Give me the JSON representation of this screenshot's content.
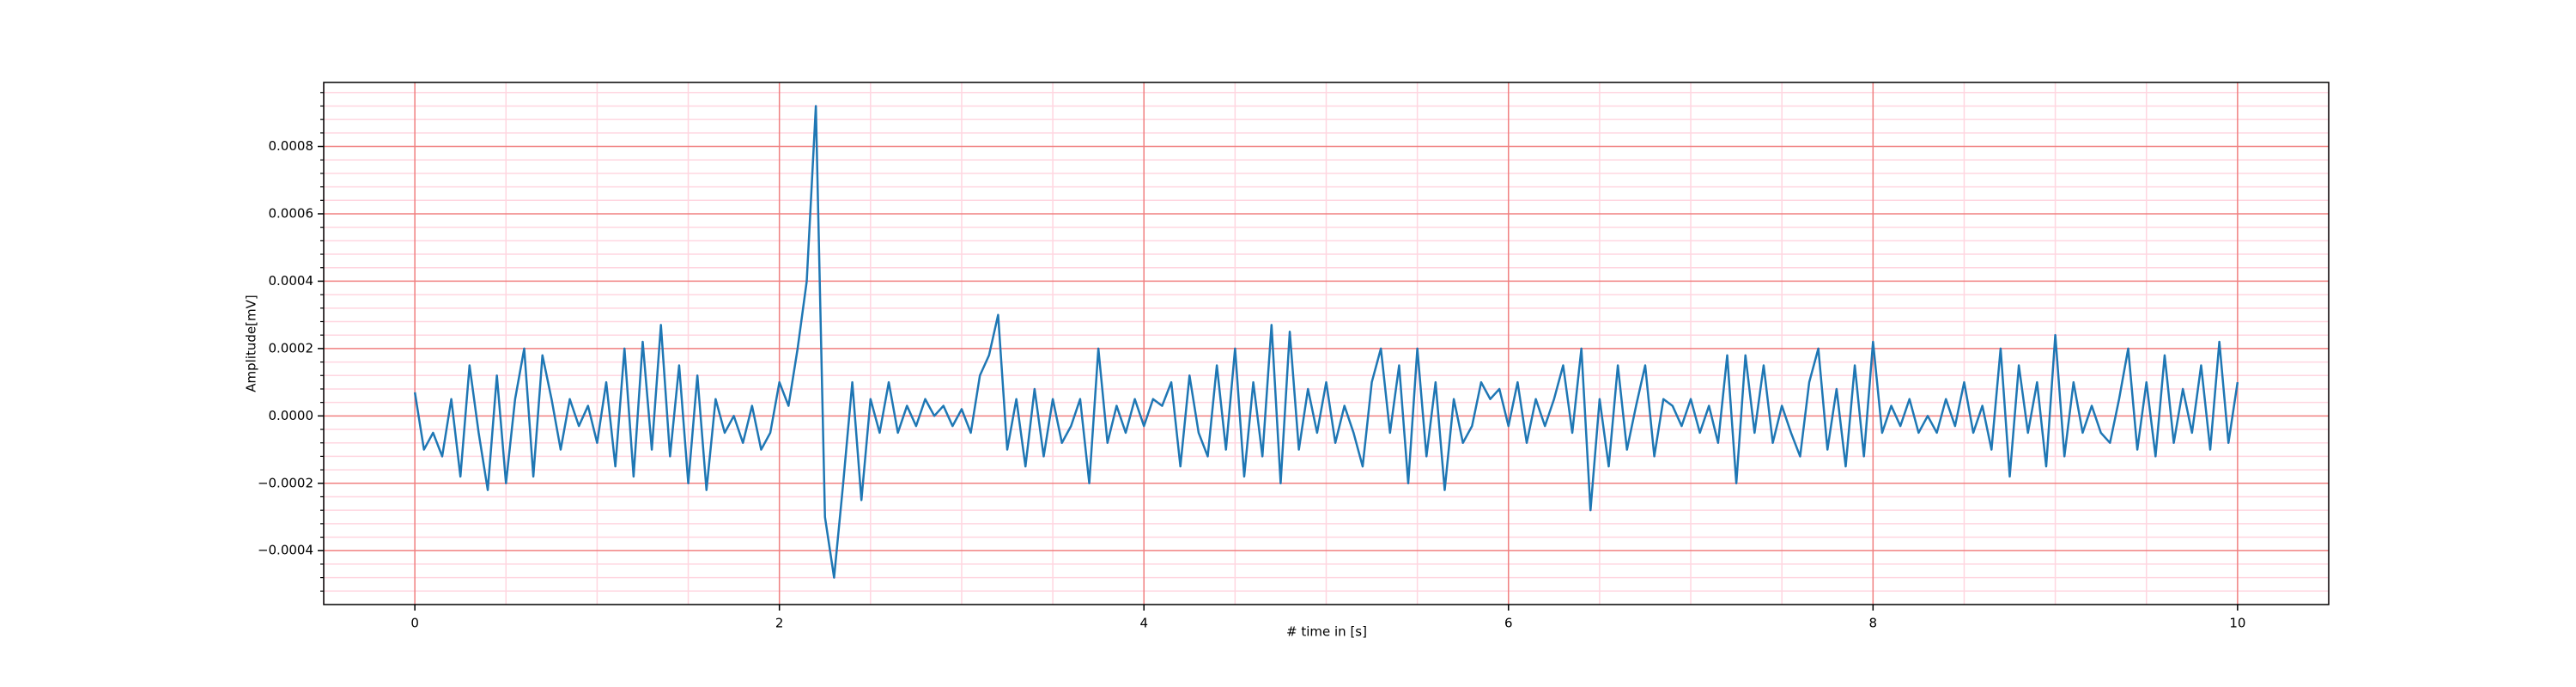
{
  "chart_data": {
    "type": "line",
    "xlabel": "# time in [s]",
    "ylabel": "Amplitude[mV]",
    "color": "#1f77b4",
    "grid": true,
    "major_grid_color": "#f08080",
    "minor_grid_color": "#ffd6e0",
    "xlim": [
      -0.5,
      10.5
    ],
    "ylim": [
      -0.00056,
      0.00099
    ],
    "xticks": [
      0,
      2,
      4,
      6,
      8,
      10
    ],
    "yticks": [
      {
        "value": -0.0004,
        "label": "−0.0004"
      },
      {
        "value": -0.0002,
        "label": "−0.0002"
      },
      {
        "value": 0,
        "label": "0.0000"
      },
      {
        "value": 0.0002,
        "label": "0.0002"
      },
      {
        "value": 0.0004,
        "label": "0.0004"
      },
      {
        "value": 0.0006,
        "label": "0.0006"
      },
      {
        "value": 0.0008,
        "label": "0.0008"
      }
    ],
    "xminorticks": [
      -0.5,
      0.5,
      1,
      1.5,
      2.5,
      3,
      3.5,
      4.5,
      5,
      5.5,
      6.5,
      7,
      7.5,
      8.5,
      9,
      9.5,
      10.5
    ],
    "yminorticks": [
      -0.00052,
      -0.00048,
      -0.00044,
      -0.00036,
      -0.00032,
      -0.00028,
      -0.00024,
      -0.00016,
      -0.00012,
      -8e-05,
      -4e-05,
      4e-05,
      8e-05,
      0.00012,
      0.00016,
      0.00024,
      0.00028,
      0.00032,
      0.00036,
      0.00044,
      0.00048,
      0.00052,
      0.00056,
      0.00064,
      0.00068,
      0.00072,
      0.00076,
      0.00084,
      0.00088,
      0.00092,
      0.00096
    ],
    "x": [
      0,
      0.05,
      0.1,
      0.15,
      0.2,
      0.25,
      0.3,
      0.35,
      0.4,
      0.45,
      0.5,
      0.55,
      0.6,
      0.65,
      0.7,
      0.75,
      0.8,
      0.85,
      0.9,
      0.95,
      1,
      1.05,
      1.1,
      1.15,
      1.2,
      1.25,
      1.3,
      1.35,
      1.4,
      1.45,
      1.5,
      1.55,
      1.6,
      1.65,
      1.7,
      1.75,
      1.8,
      1.85,
      1.9,
      1.95,
      2,
      2.05,
      2.1,
      2.15,
      2.2,
      2.25,
      2.3,
      2.35,
      2.4,
      2.45,
      2.5,
      2.55,
      2.6,
      2.65,
      2.7,
      2.75,
      2.8,
      2.85,
      2.9,
      2.95,
      3,
      3.05,
      3.1,
      3.15,
      3.2,
      3.25,
      3.3,
      3.35,
      3.4,
      3.45,
      3.5,
      3.55,
      3.6,
      3.65,
      3.7,
      3.75,
      3.8,
      3.85,
      3.9,
      3.95,
      4,
      4.05,
      4.1,
      4.15,
      4.2,
      4.25,
      4.3,
      4.35,
      4.4,
      4.45,
      4.5,
      4.55,
      4.6,
      4.65,
      4.7,
      4.75,
      4.8,
      4.85,
      4.9,
      4.95,
      5,
      5.05,
      5.1,
      5.15,
      5.2,
      5.25,
      5.3,
      5.35,
      5.4,
      5.45,
      5.5,
      5.55,
      5.6,
      5.65,
      5.7,
      5.75,
      5.8,
      5.85,
      5.9,
      5.95,
      6,
      6.05,
      6.1,
      6.15,
      6.2,
      6.25,
      6.3,
      6.35,
      6.4,
      6.45,
      6.5,
      6.55,
      6.6,
      6.65,
      6.7,
      6.75,
      6.8,
      6.85,
      6.9,
      6.95,
      7,
      7.05,
      7.1,
      7.15,
      7.2,
      7.25,
      7.3,
      7.35,
      7.4,
      7.45,
      7.5,
      7.55,
      7.6,
      7.65,
      7.7,
      7.75,
      7.8,
      7.85,
      7.9,
      7.95,
      8,
      8.05,
      8.1,
      8.15,
      8.2,
      8.25,
      8.3,
      8.35,
      8.4,
      8.45,
      8.5,
      8.55,
      8.6,
      8.65,
      8.7,
      8.75,
      8.8,
      8.85,
      8.9,
      8.95,
      9,
      9.05,
      9.1,
      9.15,
      9.2,
      9.25,
      9.3,
      9.35,
      9.4,
      9.45,
      9.5,
      9.55,
      9.6,
      9.65,
      9.7,
      9.75,
      9.8,
      9.85,
      9.9,
      9.95,
      10
    ],
    "values": [
      7e-05,
      -0.0001,
      -5e-05,
      -0.00012,
      5e-05,
      -0.00018,
      0.00015,
      -5e-05,
      -0.00022,
      0.00012,
      -0.0002,
      5e-05,
      0.0002,
      -0.00018,
      0.00018,
      5e-05,
      -0.0001,
      5e-05,
      -3e-05,
      3e-05,
      -8e-05,
      0.0001,
      -0.00015,
      0.0002,
      -0.00018,
      0.00022,
      -0.0001,
      0.00027,
      -0.00012,
      0.00015,
      -0.0002,
      0.00012,
      -0.00022,
      5e-05,
      -5e-05,
      0,
      -8e-05,
      3e-05,
      -0.0001,
      -5e-05,
      0.0001,
      3e-05,
      0.0002,
      0.0004,
      0.00092,
      -0.0003,
      -0.00048,
      -0.0002,
      0.0001,
      -0.00025,
      5e-05,
      -5e-05,
      0.0001,
      -5e-05,
      3e-05,
      -3e-05,
      5e-05,
      0,
      3e-05,
      -3e-05,
      2e-05,
      -5e-05,
      0.00012,
      0.00018,
      0.0003,
      -0.0001,
      5e-05,
      -0.00015,
      8e-05,
      -0.00012,
      5e-05,
      -8e-05,
      -3e-05,
      5e-05,
      -0.0002,
      0.0002,
      -8e-05,
      3e-05,
      -5e-05,
      5e-05,
      -3e-05,
      5e-05,
      3e-05,
      0.0001,
      -0.00015,
      0.00012,
      -5e-05,
      -0.00012,
      0.00015,
      -0.0001,
      0.0002,
      -0.00018,
      0.0001,
      -0.00012,
      0.00027,
      -0.0002,
      0.00025,
      -0.0001,
      8e-05,
      -5e-05,
      0.0001,
      -8e-05,
      3e-05,
      -5e-05,
      -0.00015,
      0.0001,
      0.0002,
      -5e-05,
      0.00015,
      -0.0002,
      0.0002,
      -0.00012,
      0.0001,
      -0.00022,
      5e-05,
      -8e-05,
      -3e-05,
      0.0001,
      5e-05,
      8e-05,
      -3e-05,
      0.0001,
      -8e-05,
      5e-05,
      -3e-05,
      5e-05,
      0.00015,
      -5e-05,
      0.0002,
      -0.00028,
      5e-05,
      -0.00015,
      0.00015,
      -0.0001,
      3e-05,
      0.00015,
      -0.00012,
      5e-05,
      3e-05,
      -3e-05,
      5e-05,
      -5e-05,
      3e-05,
      -8e-05,
      0.00018,
      -0.0002,
      0.00018,
      -5e-05,
      0.00015,
      -8e-05,
      3e-05,
      -5e-05,
      -0.00012,
      0.0001,
      0.0002,
      -0.0001,
      8e-05,
      -0.00015,
      0.00015,
      -0.00012,
      0.00022,
      -5e-05,
      3e-05,
      -3e-05,
      5e-05,
      -5e-05,
      0,
      -5e-05,
      5e-05,
      -3e-05,
      0.0001,
      -5e-05,
      3e-05,
      -0.0001,
      0.0002,
      -0.00018,
      0.00015,
      -5e-05,
      0.0001,
      -0.00015,
      0.00024,
      -0.00012,
      0.0001,
      -5e-05,
      3e-05,
      -5e-05,
      -8e-05,
      5e-05,
      0.0002,
      -0.0001,
      0.0001,
      -0.00012,
      0.00018,
      -8e-05,
      8e-05,
      -5e-05,
      0.00015,
      -0.0001,
      0.00022,
      -8e-05,
      0.0001
    ]
  }
}
